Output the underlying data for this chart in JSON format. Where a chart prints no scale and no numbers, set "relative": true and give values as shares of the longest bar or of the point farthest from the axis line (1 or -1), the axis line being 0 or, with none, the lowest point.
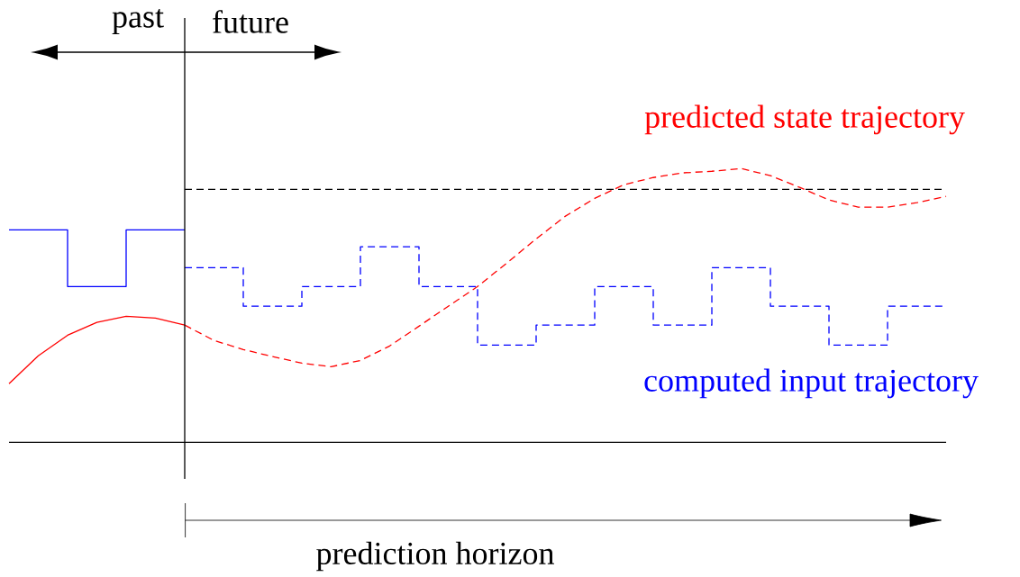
{
  "chart_data": {
    "type": "line",
    "relative": true,
    "legend": false,
    "marker": "none",
    "categories": [
      null,
      null,
      null,
      null,
      null,
      null,
      null,
      null,
      null,
      null,
      null,
      null,
      null,
      null,
      null,
      null,
      null,
      null,
      null,
      null,
      null,
      null,
      null,
      null,
      null,
      null,
      null,
      null,
      null,
      null,
      null,
      null,
      null
    ],
    "series": [
      {
        "type": "step",
        "color": "#0000ff",
        "line_style": "solid",
        "values": [
          0.776,
          null,
          0.569,
          null,
          0.776,
          null,
          0.776,
          null,
          null,
          null,
          null,
          null,
          null,
          null,
          null,
          null,
          null,
          null,
          null,
          null,
          null,
          null,
          null,
          null,
          null,
          null,
          null,
          null,
          null,
          null,
          null,
          null,
          null
        ]
      },
      {
        "type": "step",
        "name": "computed input trajectory",
        "color": "#0000ff",
        "line_style": "dashed",
        "values": [
          null,
          null,
          null,
          null,
          null,
          null,
          0.638,
          null,
          0.497,
          null,
          0.569,
          null,
          0.714,
          null,
          0.569,
          null,
          0.355,
          null,
          0.428,
          null,
          0.569,
          null,
          0.428,
          null,
          0.638,
          null,
          0.497,
          null,
          0.355,
          null,
          0.497,
          null,
          0.497
        ]
      },
      {
        "type": "line",
        "color": "#ff0000",
        "line_style": "solid",
        "values": [
          0.214,
          0.316,
          0.391,
          0.438,
          0.46,
          0.454,
          0.428,
          null,
          null,
          null,
          null,
          null,
          null,
          null,
          null,
          null,
          null,
          null,
          null,
          null,
          null,
          null,
          null,
          null,
          null,
          null,
          null,
          null,
          null,
          null,
          null,
          null,
          null
        ]
      },
      {
        "type": "line",
        "name": "predicted state trajectory",
        "color": "#ff0000",
        "line_style": "dashed",
        "values": [
          null,
          null,
          null,
          null,
          null,
          null,
          0.428,
          0.372,
          0.339,
          0.313,
          0.289,
          0.276,
          0.299,
          0.352,
          0.424,
          0.497,
          0.569,
          0.655,
          0.743,
          0.826,
          0.891,
          0.941,
          0.967,
          0.984,
          0.99,
          1,
          0.974,
          0.931,
          0.885,
          0.859,
          0.859,
          0.875,
          0.898
        ]
      },
      {
        "type": "line",
        "color": "#000000",
        "line_style": "dashed",
        "values": [
          null,
          null,
          null,
          null,
          null,
          null,
          0.924,
          0.924,
          0.924,
          0.924,
          0.924,
          0.924,
          0.924,
          0.924,
          0.924,
          0.924,
          0.924,
          0.924,
          0.924,
          0.924,
          0.924,
          0.924,
          0.924,
          0.924,
          0.924,
          0.924,
          0.924,
          0.924,
          0.924,
          0.924,
          0.924,
          0.924,
          0.924
        ]
      }
    ],
    "annotations": [
      "past",
      "future",
      "prediction horizon"
    ]
  }
}
